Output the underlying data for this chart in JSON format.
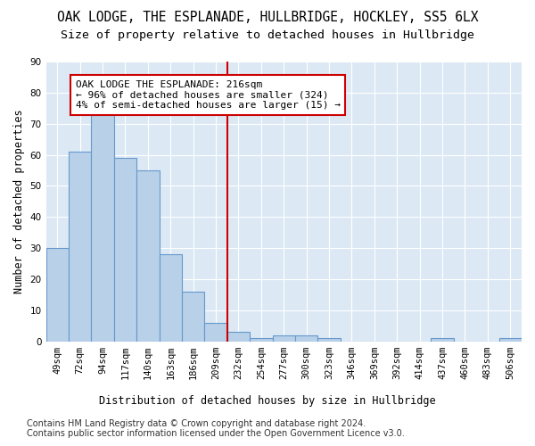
{
  "title": "OAK LODGE, THE ESPLANADE, HULLBRIDGE, HOCKLEY, SS5 6LX",
  "subtitle": "Size of property relative to detached houses in Hullbridge",
  "xlabel": "Distribution of detached houses by size in Hullbridge",
  "ylabel": "Number of detached properties",
  "bins": [
    "49sqm",
    "72sqm",
    "94sqm",
    "117sqm",
    "140sqm",
    "163sqm",
    "186sqm",
    "209sqm",
    "232sqm",
    "254sqm",
    "277sqm",
    "300sqm",
    "323sqm",
    "346sqm",
    "369sqm",
    "392sqm",
    "414sqm",
    "437sqm",
    "460sqm",
    "483sqm",
    "506sqm"
  ],
  "bar_heights": [
    30,
    61,
    75,
    59,
    55,
    28,
    16,
    6,
    3,
    1,
    2,
    2,
    1,
    0,
    0,
    0,
    0,
    1,
    0,
    0,
    1
  ],
  "bar_color": "#b8d0e8",
  "bar_edgecolor": "#6699cc",
  "vline_x": 7.5,
  "vline_color": "#cc0000",
  "annotation_text": "OAK LODGE THE ESPLANADE: 216sqm\n← 96% of detached houses are smaller (324)\n4% of semi-detached houses are larger (15) →",
  "annotation_box_color": "#cc0000",
  "ylim": [
    0,
    90
  ],
  "yticks": [
    0,
    10,
    20,
    30,
    40,
    50,
    60,
    70,
    80,
    90
  ],
  "plot_bg_color": "#dce9f5",
  "footer1": "Contains HM Land Registry data © Crown copyright and database right 2024.",
  "footer2": "Contains public sector information licensed under the Open Government Licence v3.0.",
  "title_fontsize": 10.5,
  "subtitle_fontsize": 9.5,
  "axis_label_fontsize": 8.5,
  "tick_fontsize": 7.5,
  "annotation_fontsize": 8,
  "footer_fontsize": 7
}
